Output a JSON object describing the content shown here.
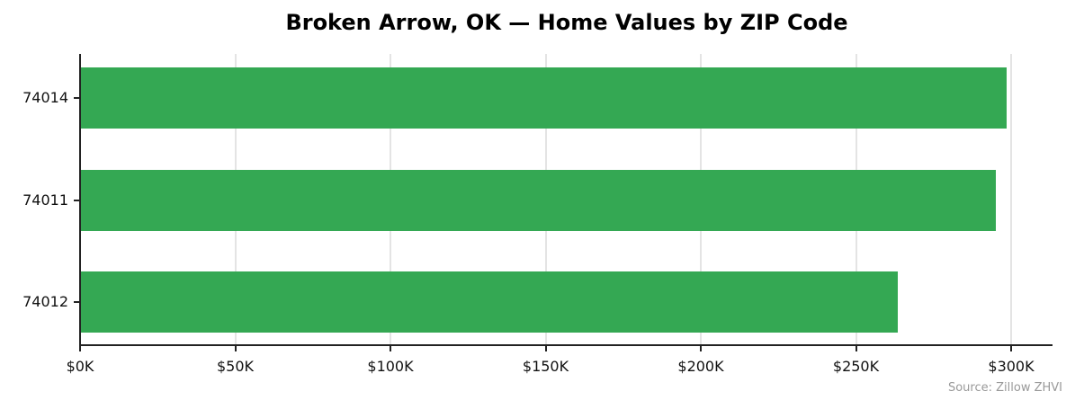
{
  "chart_data": {
    "type": "bar",
    "orientation": "horizontal",
    "title": "Broken Arrow, OK — Home Values by ZIP Code",
    "xlabel": "",
    "ylabel": "",
    "categories": [
      "74014",
      "74011",
      "74012"
    ],
    "values": [
      298600,
      295100,
      263500
    ],
    "xlim": [
      0,
      313000
    ],
    "x_ticks": [
      0,
      50000,
      100000,
      150000,
      200000,
      250000,
      300000
    ],
    "x_tick_labels": [
      "$0K",
      "$50K",
      "$100K",
      "$150K",
      "$200K",
      "$250K",
      "$300K"
    ],
    "grid": "vertical",
    "bar_color": "#34a853",
    "annotation": "Source: Zillow ZHVI"
  },
  "title": "Broken Arrow, OK — Home Values by ZIP Code",
  "bars": [
    {
      "label": "74014",
      "value": 298600
    },
    {
      "label": "74011",
      "value": 295100
    },
    {
      "label": "74012",
      "value": 263500
    }
  ],
  "x_tick_labels": [
    "$0K",
    "$50K",
    "$100K",
    "$150K",
    "$200K",
    "$250K",
    "$300K"
  ],
  "source": "Source: Zillow ZHVI"
}
